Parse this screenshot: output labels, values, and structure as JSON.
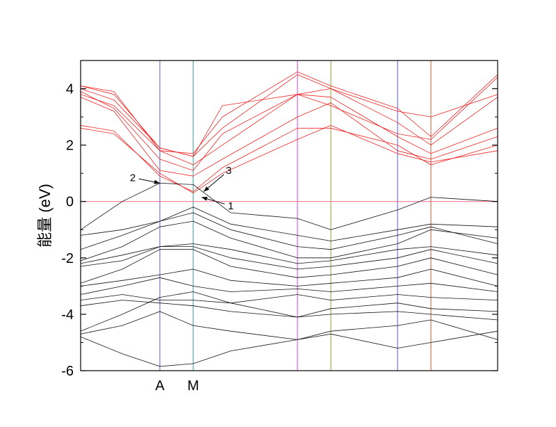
{
  "chart_data": {
    "type": "line",
    "xlabel": "",
    "ylabel": "能量 (eV)",
    "ylim": [
      -6,
      5
    ],
    "yticks": [
      -6,
      -4,
      -2,
      0,
      2,
      4
    ],
    "ytick_labels": [
      "-6",
      "-4",
      "-2",
      "0",
      "2",
      "4"
    ],
    "xlim": [
      0,
      10
    ],
    "k_points": [
      1.9,
      2.7,
      5.2,
      6.0,
      7.6,
      8.4
    ],
    "k_labels": [
      {
        "x": 1.9,
        "text": "A"
      },
      {
        "x": 2.7,
        "text": "M"
      }
    ],
    "k_line_colors": [
      "#5555dd",
      "#339999",
      "#cc44cc",
      "#999933",
      "#5555dd",
      "#cc5533"
    ],
    "fermi_level": 0,
    "colors": {
      "conduction": "#ee2222",
      "valence": "#111111",
      "fermi": "#ff6688"
    },
    "annotations": [
      {
        "text": "1",
        "point": [
          2.9,
          0.15
        ],
        "label_pos": [
          3.6,
          -0.15
        ]
      },
      {
        "text": "2",
        "point": [
          1.9,
          0.65
        ],
        "label_pos": [
          1.25,
          0.85
        ]
      },
      {
        "text": "3",
        "point": [
          2.95,
          0.35
        ],
        "label_pos": [
          3.55,
          1.1
        ]
      }
    ],
    "series": [
      {
        "band": "conduction",
        "x": [
          0,
          0.8,
          1.9,
          2.7,
          3.4,
          5.2,
          6.0,
          7.6,
          8.4,
          10
        ],
        "y": [
          2.6,
          2.4,
          1.0,
          0.3,
          1.0,
          2.2,
          2.7,
          1.7,
          1.4,
          1.8
        ]
      },
      {
        "band": "conduction",
        "x": [
          0,
          0.8,
          1.9,
          2.7,
          3.4,
          5.2,
          6.0,
          7.6,
          8.4,
          10
        ],
        "y": [
          2.7,
          2.5,
          0.9,
          0.35,
          1.2,
          2.6,
          2.6,
          2.0,
          1.3,
          2.0
        ]
      },
      {
        "band": "conduction",
        "x": [
          0,
          0.8,
          1.9,
          2.7,
          3.4,
          5.2,
          6.0,
          7.6,
          8.4,
          10
        ],
        "y": [
          3.7,
          3.2,
          1.1,
          0.9,
          1.5,
          3.0,
          3.5,
          1.8,
          1.5,
          2.3
        ]
      },
      {
        "band": "conduction",
        "x": [
          0,
          0.8,
          1.9,
          2.7,
          3.4,
          5.2,
          6.0,
          7.6,
          8.4,
          10
        ],
        "y": [
          3.8,
          3.4,
          1.8,
          1.3,
          2.0,
          3.8,
          3.7,
          2.3,
          1.7,
          2.6
        ]
      },
      {
        "band": "conduction",
        "x": [
          0,
          0.8,
          1.9,
          2.7,
          3.4,
          5.2,
          6.0,
          7.6,
          8.4,
          10
        ],
        "y": [
          4.0,
          3.6,
          1.9,
          1.6,
          2.6,
          4.5,
          4.0,
          2.8,
          2.0,
          3.7
        ]
      },
      {
        "band": "conduction",
        "x": [
          0,
          0.8,
          1.9,
          2.7,
          3.4,
          5.2,
          6.0,
          7.6,
          8.4,
          10
        ],
        "y": [
          4.1,
          3.9,
          1.8,
          1.7,
          3.0,
          4.6,
          4.1,
          3.3,
          2.3,
          4.5
        ]
      },
      {
        "band": "conduction",
        "x": [
          0,
          0.8,
          1.9,
          2.7,
          3.4,
          5.2,
          6.0,
          7.6,
          8.4,
          10
        ],
        "y": [
          4.1,
          3.8,
          1.9,
          1.6,
          3.4,
          3.8,
          4.0,
          3.2,
          3.0,
          3.8
        ]
      },
      {
        "band": "conduction",
        "x": [
          0,
          0.8,
          1.9,
          2.7,
          3.4,
          5.2,
          6.0,
          7.6,
          8.4,
          10
        ],
        "y": [
          3.9,
          3.3,
          1.5,
          1.1,
          2.4,
          3.8,
          3.4,
          2.4,
          2.2,
          4.4
        ]
      },
      {
        "band": "valence",
        "x": [
          0,
          1.0,
          1.9,
          2.7,
          3.6,
          5.2,
          6.0,
          7.6,
          8.4,
          10
        ],
        "y": [
          -1.0,
          0.0,
          0.65,
          0.6,
          -0.4,
          -0.6,
          -1.0,
          -0.3,
          0.15,
          0.0
        ]
      },
      {
        "band": "valence",
        "x": [
          0,
          1.0,
          1.9,
          2.7,
          3.6,
          5.2,
          6.0,
          7.6,
          8.4,
          10
        ],
        "y": [
          -1.2,
          -1.0,
          -0.7,
          -0.2,
          -0.8,
          -1.2,
          -1.4,
          -1.0,
          -0.8,
          -0.9
        ]
      },
      {
        "band": "valence",
        "x": [
          0,
          1.0,
          1.9,
          2.7,
          3.6,
          5.2,
          6.0,
          7.6,
          8.4,
          10
        ],
        "y": [
          -1.7,
          -1.2,
          -0.7,
          -0.4,
          -1.0,
          -1.6,
          -1.7,
          -1.2,
          -0.9,
          -1.5
        ]
      },
      {
        "band": "valence",
        "x": [
          0,
          1.0,
          1.9,
          2.7,
          3.6,
          5.2,
          6.0,
          7.6,
          8.4,
          10
        ],
        "y": [
          -2.1,
          -1.6,
          -0.9,
          -0.7,
          -1.3,
          -2.0,
          -2.0,
          -1.5,
          -1.0,
          -1.3
        ]
      },
      {
        "band": "valence",
        "x": [
          0,
          1.0,
          1.9,
          2.7,
          3.6,
          5.2,
          6.0,
          7.6,
          8.4,
          10
        ],
        "y": [
          -2.2,
          -1.9,
          -1.6,
          -1.5,
          -1.7,
          -2.2,
          -2.1,
          -1.7,
          -1.6,
          -1.9
        ]
      },
      {
        "band": "valence",
        "x": [
          0,
          1.0,
          1.9,
          2.7,
          3.6,
          5.2,
          6.0,
          7.6,
          8.4,
          10
        ],
        "y": [
          -2.3,
          -2.1,
          -1.6,
          -1.6,
          -2.0,
          -2.4,
          -2.3,
          -2.0,
          -1.7,
          -2.2
        ]
      },
      {
        "band": "valence",
        "x": [
          0,
          1.0,
          1.9,
          2.7,
          3.6,
          5.2,
          6.0,
          7.6,
          8.4,
          10
        ],
        "y": [
          -2.9,
          -2.4,
          -1.7,
          -1.7,
          -2.3,
          -2.7,
          -2.6,
          -2.3,
          -2.0,
          -2.6
        ]
      },
      {
        "band": "valence",
        "x": [
          0,
          1.0,
          1.9,
          2.7,
          3.6,
          5.2,
          6.0,
          7.6,
          8.4,
          10
        ],
        "y": [
          -3.0,
          -2.8,
          -2.6,
          -2.4,
          -2.8,
          -3.0,
          -2.9,
          -2.7,
          -2.4,
          -3.0
        ]
      },
      {
        "band": "valence",
        "x": [
          0,
          1.0,
          1.9,
          2.7,
          3.6,
          5.2,
          6.0,
          7.6,
          8.4,
          10
        ],
        "y": [
          -3.3,
          -3.0,
          -2.7,
          -3.0,
          -3.2,
          -3.1,
          -3.2,
          -3.0,
          -2.9,
          -3.2
        ]
      },
      {
        "band": "valence",
        "x": [
          0,
          1.0,
          1.9,
          2.7,
          3.6,
          5.2,
          6.0,
          7.6,
          8.4,
          10
        ],
        "y": [
          -3.5,
          -3.3,
          -3.5,
          -3.5,
          -3.6,
          -3.3,
          -3.5,
          -3.3,
          -3.4,
          -3.5
        ]
      },
      {
        "band": "valence",
        "x": [
          0,
          1.0,
          1.9,
          2.7,
          3.6,
          5.2,
          6.0,
          7.6,
          8.4,
          10
        ],
        "y": [
          -3.7,
          -3.5,
          -3.6,
          -3.7,
          -3.9,
          -4.1,
          -3.8,
          -3.6,
          -3.8,
          -3.9
        ]
      },
      {
        "band": "valence",
        "x": [
          0,
          1.0,
          1.9,
          2.7,
          3.6,
          5.2,
          6.0,
          7.6,
          8.4,
          10
        ],
        "y": [
          -4.6,
          -4.0,
          -3.4,
          -3.2,
          -3.6,
          -4.1,
          -4.0,
          -3.9,
          -4.0,
          -4.2
        ]
      },
      {
        "band": "valence",
        "x": [
          0,
          1.0,
          1.9,
          2.7,
          3.6,
          5.2,
          6.0,
          7.6,
          8.4,
          10
        ],
        "y": [
          -4.7,
          -4.4,
          -3.9,
          -4.4,
          -4.6,
          -4.9,
          -4.6,
          -4.4,
          -4.2,
          -4.9
        ]
      },
      {
        "band": "valence",
        "x": [
          0,
          1.0,
          1.9,
          2.7,
          3.6,
          5.2,
          6.0,
          7.6,
          8.4,
          10
        ],
        "y": [
          -4.8,
          -5.4,
          -5.85,
          -5.75,
          -5.3,
          -4.9,
          -4.7,
          -5.2,
          -5.0,
          -4.6
        ]
      }
    ]
  }
}
